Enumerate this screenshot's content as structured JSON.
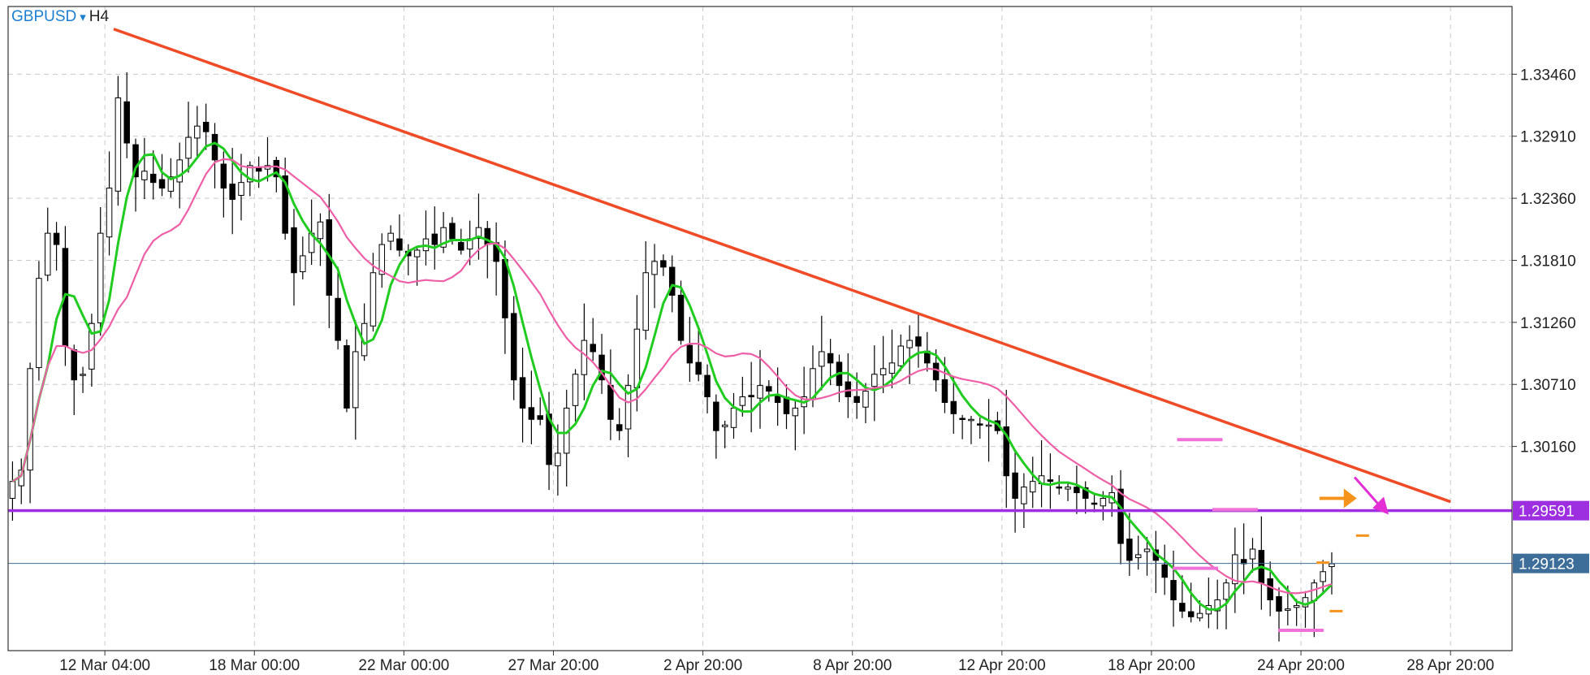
{
  "header": {
    "symbol": "GBPUSD",
    "timeframe_arrow": "▾",
    "timeframe": "H4"
  },
  "colors": {
    "bull_candle": "#ffffff",
    "bear_candle": "#000000",
    "candle_outline": "#000000",
    "fast_ma": "#1fcc1f",
    "slow_ma": "#ee5fa7",
    "trendline": "#ee4b26",
    "horizontal_level": "#9d2fe0",
    "current_price_line": "#3d6e9a",
    "current_price_tag": "#3d6e9a",
    "grid": "#c9c9c9",
    "arrow_orange": "#f5941d",
    "arrow_magenta": "#e32ed6",
    "marker_pink": "#f071d8",
    "marker_orange": "#f5941d"
  },
  "chart_data": {
    "type": "candlestick",
    "symbol": "GBPUSD",
    "timeframe": "H4",
    "ylim": [
      1.2835,
      1.3406
    ],
    "xlim": [
      0,
      171
    ],
    "grid": true,
    "y_ticks": [
      "1.33460",
      "1.32910",
      "1.32360",
      "1.31810",
      "1.31260",
      "1.30710",
      "1.30160"
    ],
    "y_tick_values": [
      1.3346,
      1.3291,
      1.3236,
      1.3181,
      1.3126,
      1.3071,
      1.3016
    ],
    "x_ticks": [
      "12 Mar 04:00",
      "18 Mar 00:00",
      "22 Mar 00:00",
      "27 Mar 20:00",
      "2 Apr 20:00",
      "8 Apr 20:00",
      "12 Apr 20:00",
      "18 Apr 20:00",
      "24 Apr 20:00",
      "28 Apr 20:00"
    ],
    "x_tick_bars": [
      11,
      28,
      45,
      62,
      79,
      96,
      113,
      130,
      147,
      164
    ],
    "horizontal_level": {
      "value": 1.29591,
      "label": "1.29591"
    },
    "current_price": {
      "value": 1.29123,
      "label": "1.29123"
    },
    "trendline": {
      "start": {
        "bar": 12,
        "price": 1.3386
      },
      "end": {
        "bar": 164,
        "price": 1.2967
      }
    },
    "bars_count": 151,
    "closes": [
      1.2985,
      1.2995,
      1.3085,
      1.3165,
      1.3205,
      1.3195,
      1.3105,
      1.3075,
      1.308,
      1.3125,
      1.3205,
      1.3245,
      1.3325,
      1.3285,
      1.3255,
      1.326,
      1.325,
      1.3245,
      1.3255,
      1.327,
      1.329,
      1.33,
      1.3295,
      1.327,
      1.3245,
      1.3235,
      1.325,
      1.3265,
      1.326,
      1.3265,
      1.3255,
      1.3205,
      1.317,
      1.3185,
      1.3205,
      1.3215,
      1.315,
      1.311,
      1.305,
      1.31,
      1.3125,
      1.317,
      1.3195,
      1.3205,
      1.319,
      1.3185,
      1.319,
      1.32,
      1.3195,
      1.321,
      1.32,
      1.319,
      1.32,
      1.321,
      1.3195,
      1.318,
      1.313,
      1.3075,
      1.305,
      1.304,
      1.304,
      1.3,
      1.301,
      1.305,
      1.308,
      1.311,
      1.31,
      1.3075,
      1.304,
      1.303,
      1.307,
      1.312,
      1.317,
      1.318,
      1.3175,
      1.315,
      1.311,
      1.309,
      1.308,
      1.306,
      1.303,
      1.3035,
      1.305,
      1.306,
      1.306,
      1.307,
      1.3065,
      1.3055,
      1.3045,
      1.305,
      1.306,
      1.3085,
      1.31,
      1.309,
      1.307,
      1.306,
      1.3055,
      1.3065,
      1.308,
      1.3085,
      1.309,
      1.3105,
      1.311,
      1.3105,
      1.309,
      1.3075,
      1.3055,
      1.3045,
      1.304,
      1.304,
      1.3035,
      1.3035,
      1.303,
      1.299,
      1.297,
      1.298,
      1.2985,
      1.299,
      1.2985,
      1.298,
      1.298,
      1.2975,
      1.297,
      1.2965,
      1.297,
      1.2975,
      1.293,
      1.2915,
      1.292,
      1.2925,
      1.2915,
      1.29,
      1.288,
      1.287,
      1.2865,
      1.2868,
      1.2875,
      1.288,
      1.2895,
      1.292,
      1.2912,
      1.2925,
      1.2895,
      1.288,
      1.287,
      1.2872,
      1.2875,
      1.2882,
      1.2895,
      1.2905,
      1.2912
    ],
    "series": [
      {
        "name": "",
        "kind": "fast moving average",
        "color": "#1fcc1f",
        "period": 5
      },
      {
        "name": "",
        "kind": "slow moving average",
        "color": "#ee5fa7",
        "period": 14
      }
    ],
    "annotations": [
      {
        "kind": "arrow-right",
        "color": "#f5941d",
        "bar": 151.5,
        "price": 1.297
      },
      {
        "kind": "arrow-down-right",
        "color": "#e32ed6",
        "bar": 155.5,
        "price": 1.297
      },
      {
        "kind": "pink-dash",
        "bar": 135.5,
        "price": 1.3022
      },
      {
        "kind": "pink-dash",
        "bar": 139.5,
        "price": 1.296
      },
      {
        "kind": "pink-dash",
        "bar": 135.0,
        "price": 1.2908
      },
      {
        "kind": "pink-dash",
        "bar": 147.0,
        "price": 1.2853
      },
      {
        "kind": "orange-dash",
        "bar": 149.5,
        "price": 1.2913
      },
      {
        "kind": "orange-dash",
        "bar": 151.0,
        "price": 1.287
      },
      {
        "kind": "orange-dash",
        "bar": 154.0,
        "price": 1.2937
      }
    ]
  }
}
